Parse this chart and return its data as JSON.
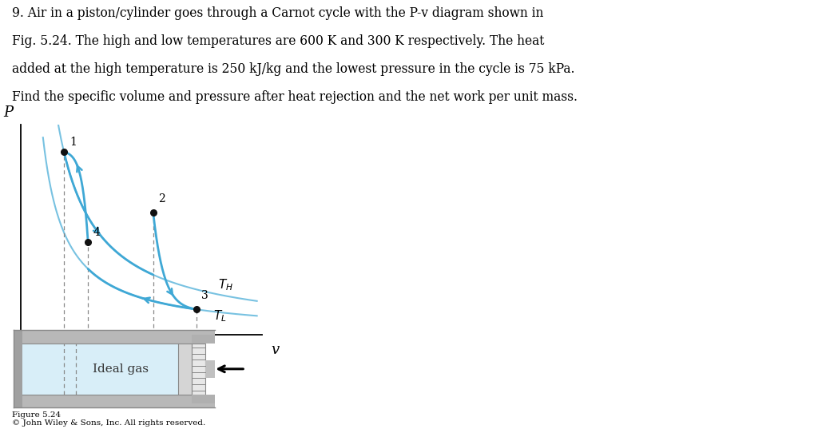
{
  "title_lines": [
    "9. Air in a piston/cylinder goes through a Carnot cycle with the P-v diagram shown in",
    "Fig. 5.24. The high and low temperatures are 600 K and 300 K respectively. The heat",
    "added at the high temperature is 250 kJ/kg and the lowest pressure in the cycle is 75 kPa.",
    "Find the specific volume and pressure after heat rejection and the net work per unit mass."
  ],
  "background_color": "#ffffff",
  "curve_color": "#3fa8d5",
  "text_color": "#000000",
  "point_color": "#111111",
  "dashed_color": "#888888",
  "figure_caption_line1": "Figure 5.24",
  "figure_caption_line2": "© John Wiley & Sons, Inc. All rights reserved.",
  "p_label": "P",
  "v_label": "v",
  "cylinder_color": "#d8eef8",
  "cylinder_outer_color": "#c0c0c0",
  "cylinder_wall_color": "#b0b0b0",
  "piston_color": "#d8d8d8",
  "ideal_gas_label": "Ideal gas",
  "p1": [
    0.18,
    0.87
  ],
  "p2": [
    0.55,
    0.58
  ],
  "p3": [
    0.73,
    0.12
  ],
  "p4": [
    0.28,
    0.44
  ]
}
